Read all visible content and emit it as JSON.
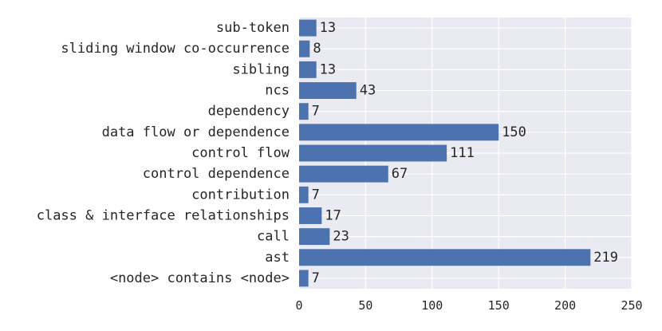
{
  "chart_data": {
    "type": "bar",
    "orientation": "horizontal",
    "categories": [
      "sub-token",
      "sliding window co-occurrence",
      "sibling",
      "ncs",
      "dependency",
      "data flow or dependence",
      "control flow",
      "control dependence",
      "contribution",
      "class & interface relationships",
      "call",
      "ast",
      "<node> contains <node>"
    ],
    "values": [
      13,
      8,
      13,
      43,
      7,
      150,
      111,
      67,
      7,
      17,
      23,
      219,
      7
    ],
    "xlim": [
      0,
      250
    ],
    "xticks": [
      "0",
      "50",
      "100",
      "150",
      "200",
      "250"
    ],
    "title": "",
    "xlabel": "",
    "ylabel": "",
    "grid": true,
    "bar_color": "#4c72b0",
    "background_color": "#eaeaf2"
  }
}
